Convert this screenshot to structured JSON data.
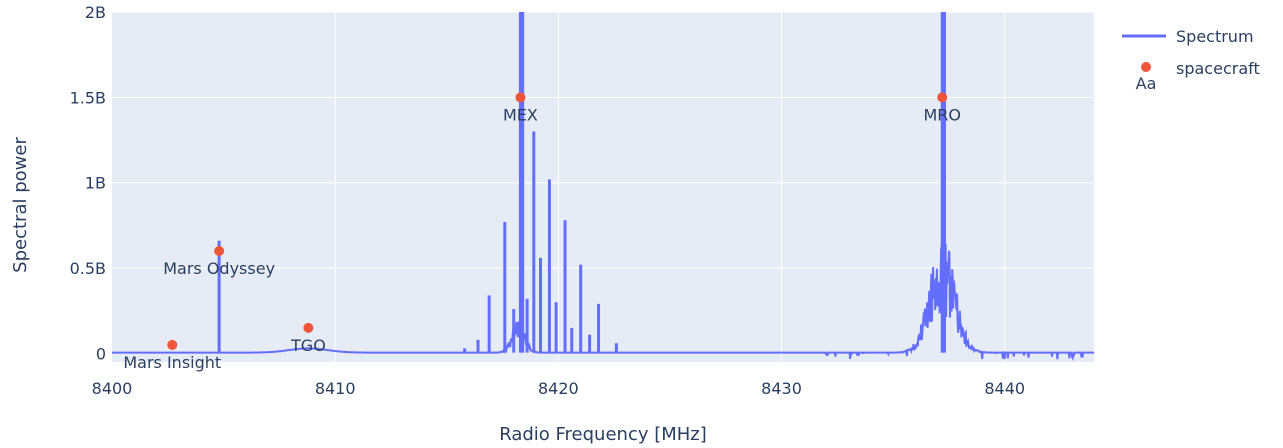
{
  "chart_data": {
    "type": "line",
    "xlabel": "Radio Frequency [MHz]",
    "ylabel": "Spectral power",
    "xlim": [
      8400,
      8444
    ],
    "ylim": [
      -50000000,
      2000000000
    ],
    "x_ticks": [
      8400,
      8410,
      8420,
      8430,
      8440
    ],
    "x_tick_labels": [
      "8400",
      "8410",
      "8420",
      "8430",
      "8440"
    ],
    "y_ticks": [
      0,
      500000000,
      1000000000,
      1500000000,
      2000000000
    ],
    "y_tick_labels": [
      "0",
      "0.5B",
      "1B",
      "1.5B",
      "2B"
    ],
    "grid": true,
    "legend_position": "top-right",
    "colors": {
      "spectrum": "#636efa",
      "spacecraft": "#ef553b",
      "plot_bg": "#e5ecf6",
      "grid": "#ffffff",
      "text": "#2a3f5f"
    },
    "series": [
      {
        "name": "Spectrum",
        "kind": "line",
        "baseline": 5000000,
        "hump_tgo": {
          "center": 8408.8,
          "width": 1.2,
          "height": 25000000
        },
        "hump_mex": {
          "center": 8418.2,
          "width": 0.4,
          "height": 200000000
        },
        "hump_mro": {
          "center": 8437.2,
          "width": 0.8,
          "height": 700000000
        },
        "spikes": [
          {
            "x": 8404.8,
            "y": 660000000
          },
          {
            "x": 8416.9,
            "y": 340000000
          },
          {
            "x": 8417.6,
            "y": 770000000
          },
          {
            "x": 8418.0,
            "y": 260000000
          },
          {
            "x": 8418.3,
            "y": 2000000000
          },
          {
            "x": 8418.4,
            "y": 2000000000
          },
          {
            "x": 8418.6,
            "y": 320000000
          },
          {
            "x": 8418.9,
            "y": 1300000000
          },
          {
            "x": 8419.2,
            "y": 560000000
          },
          {
            "x": 8419.6,
            "y": 1020000000
          },
          {
            "x": 8419.9,
            "y": 300000000
          },
          {
            "x": 8420.3,
            "y": 780000000
          },
          {
            "x": 8420.6,
            "y": 150000000
          },
          {
            "x": 8421.0,
            "y": 520000000
          },
          {
            "x": 8421.4,
            "y": 110000000
          },
          {
            "x": 8421.8,
            "y": 290000000
          },
          {
            "x": 8422.6,
            "y": 60000000
          },
          {
            "x": 8415.8,
            "y": 30000000
          },
          {
            "x": 8416.4,
            "y": 80000000
          },
          {
            "x": 8437.2,
            "y": 2000000000
          },
          {
            "x": 8437.3,
            "y": 2000000000
          }
        ]
      },
      {
        "name": "spacecraft",
        "kind": "markers+text",
        "points": [
          {
            "x": 8402.7,
            "y": 50000000,
            "label": "Mars Insight"
          },
          {
            "x": 8404.8,
            "y": 600000000,
            "label": "Mars Odyssey"
          },
          {
            "x": 8408.8,
            "y": 150000000,
            "label": "TGO"
          },
          {
            "x": 8418.3,
            "y": 1500000000,
            "label": "MEX"
          },
          {
            "x": 8437.2,
            "y": 1500000000,
            "label": "MRO"
          }
        ]
      }
    ],
    "legend": {
      "spectrum_label": "Spectrum",
      "spacecraft_label": "spacecraft",
      "text_symbol": "Aa"
    }
  }
}
